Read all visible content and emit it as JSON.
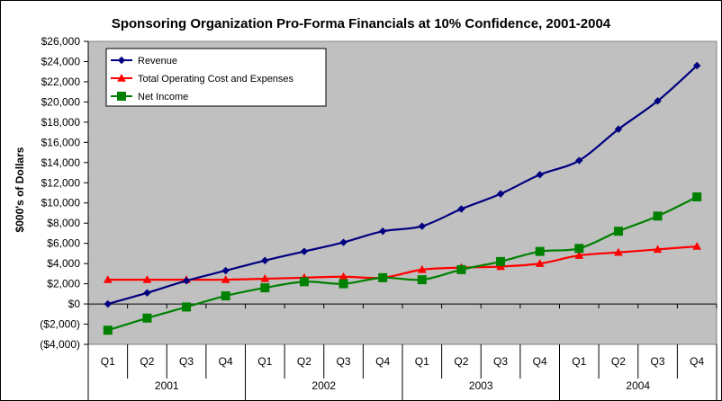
{
  "chart_data": {
    "type": "line",
    "title": "Sponsoring Organization Pro-Forma Financials at 10% Confidence, 2001-2004",
    "ylabel": "$000's of Dollars",
    "xlabel": "",
    "ylim": [
      -4000,
      26000
    ],
    "ytick_step": 2000,
    "ytick_labels": [
      "($4,000)",
      "($2,000)",
      "$0",
      "$2,000",
      "$4,000",
      "$6,000",
      "$8,000",
      "$10,000",
      "$12,000",
      "$14,000",
      "$16,000",
      "$18,000",
      "$20,000",
      "$22,000",
      "$24,000",
      "$26,000"
    ],
    "quarters": [
      "Q1",
      "Q2",
      "Q3",
      "Q4",
      "Q1",
      "Q2",
      "Q3",
      "Q4",
      "Q1",
      "Q2",
      "Q3",
      "Q4",
      "Q1",
      "Q2",
      "Q3",
      "Q4"
    ],
    "years": [
      "2001",
      "2002",
      "2003",
      "2004"
    ],
    "grid": false,
    "plot_background": "#c0c0c0",
    "legend_position": "top-left",
    "series": [
      {
        "name": "Revenue",
        "color": "#000080",
        "marker": "diamond",
        "values": [
          0,
          1100,
          2300,
          3300,
          4300,
          5200,
          6100,
          7200,
          7700,
          9400,
          10900,
          12800,
          14200,
          17300,
          20100,
          23600
        ]
      },
      {
        "name": "Total Operating Cost and Expenses",
        "color": "#ff0000",
        "marker": "triangle",
        "values": [
          2400,
          2400,
          2400,
          2400,
          2500,
          2600,
          2700,
          2600,
          3400,
          3600,
          3700,
          4000,
          4800,
          5100,
          5400,
          5700
        ]
      },
      {
        "name": "Net Income",
        "color": "#008000",
        "marker": "square",
        "values": [
          -2600,
          -1400,
          -300,
          800,
          1600,
          2200,
          2000,
          2600,
          2400,
          3400,
          4200,
          5200,
          5500,
          7200,
          8700,
          10600
        ]
      }
    ]
  }
}
